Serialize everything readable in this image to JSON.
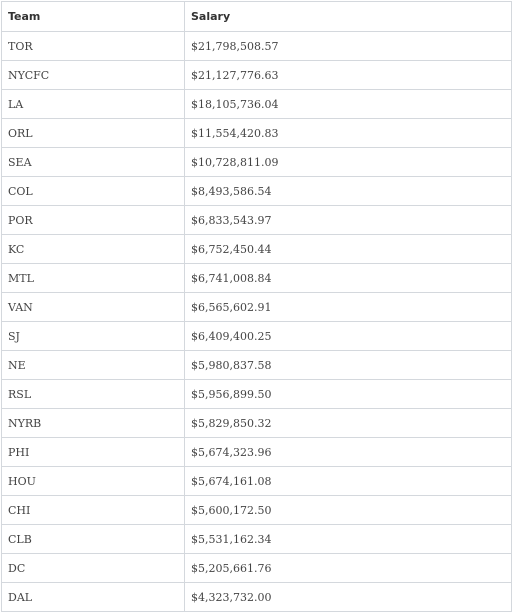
{
  "table": {
    "headers": {
      "team": "Team",
      "salary": "Salary"
    },
    "rows": [
      {
        "team": "TOR",
        "salary": "$21,798,508.57"
      },
      {
        "team": "NYCFC",
        "salary": "$21,127,776.63"
      },
      {
        "team": "LA",
        "salary": "$18,105,736.04"
      },
      {
        "team": "ORL",
        "salary": "$11,554,420.83"
      },
      {
        "team": "SEA",
        "salary": "$10,728,811.09"
      },
      {
        "team": "COL",
        "salary": "$8,493,586.54"
      },
      {
        "team": "POR",
        "salary": "$6,833,543.97"
      },
      {
        "team": "KC",
        "salary": "$6,752,450.44"
      },
      {
        "team": "MTL",
        "salary": "$6,741,008.84"
      },
      {
        "team": "VAN",
        "salary": "$6,565,602.91"
      },
      {
        "team": "SJ",
        "salary": "$6,409,400.25"
      },
      {
        "team": "NE",
        "salary": "$5,980,837.58"
      },
      {
        "team": "RSL",
        "salary": "$5,956,899.50"
      },
      {
        "team": "NYRB",
        "salary": "$5,829,850.32"
      },
      {
        "team": "PHI",
        "salary": "$5,674,323.96"
      },
      {
        "team": "HOU",
        "salary": "$5,674,161.08"
      },
      {
        "team": "CHI",
        "salary": "$5,600,172.50"
      },
      {
        "team": "CLB",
        "salary": "$5,531,162.34"
      },
      {
        "team": "DC",
        "salary": "$5,205,661.76"
      },
      {
        "team": "DAL",
        "salary": "$4,323,732.00"
      }
    ]
  },
  "colors": {
    "border": "#d4d8dd",
    "header_text": "#333333",
    "cell_text": "#444444",
    "background": "#ffffff"
  }
}
